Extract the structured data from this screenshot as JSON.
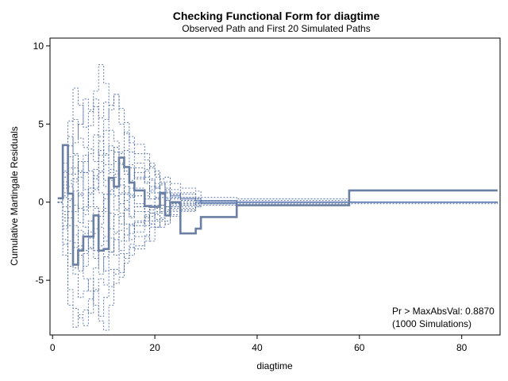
{
  "chart_data": {
    "type": "line",
    "title": "Checking Functional Form for diagtime",
    "subtitle": "Observed Path and First 20 Simulated Paths",
    "xlabel": "diagtime",
    "ylabel": "Cumulative Martingale Residuals",
    "xlim": [
      -0.5,
      87.5
    ],
    "ylim": [
      -8.5,
      10.5
    ],
    "xticks": [
      0,
      20,
      40,
      60,
      80
    ],
    "yticks": [
      -5,
      0,
      5,
      10
    ],
    "x_tick_labels": [
      "0",
      "20",
      "40",
      "60",
      "80"
    ],
    "y_tick_labels": [
      "-5",
      "0",
      "5",
      "10"
    ],
    "grid": false,
    "colors": {
      "observed": "#6b7fa3",
      "simulated": "#3f5f9f",
      "frame": "#000000"
    },
    "observed": {
      "x": [
        1,
        2,
        3,
        4,
        5,
        6,
        7,
        8,
        9,
        10,
        11,
        12,
        13,
        14,
        15,
        16,
        18,
        19,
        20,
        21,
        22,
        23,
        25,
        28,
        29,
        36,
        58,
        87
      ],
      "y": [
        0.25,
        3.65,
        0.55,
        -4.0,
        -3.1,
        -2.2,
        -2.2,
        -0.85,
        -3.1,
        -3.0,
        1.55,
        1.0,
        2.85,
        2.25,
        1.25,
        0.75,
        -0.25,
        -0.3,
        -0.3,
        0.6,
        -0.85,
        0.0,
        -2.0,
        -1.7,
        -0.95,
        -0.2,
        0.75,
        0.75
      ]
    },
    "simulated_paths": [
      {
        "y": [
          0.0,
          1.1,
          2.2,
          3.8,
          5.0,
          6.6,
          5.9,
          7.1,
          8.8,
          7.6,
          6.2,
          6.9,
          6.0,
          5.1,
          4.2,
          3.7,
          3.1,
          2.3,
          1.8,
          1.5,
          1.6,
          1.2,
          0.9,
          0.7,
          0.3,
          0.2,
          0.0,
          0.0
        ]
      },
      {
        "y": [
          0.0,
          2.0,
          5.2,
          7.3,
          6.2,
          4.8,
          5.8,
          6.6,
          4.2,
          5.3,
          5.9,
          6.9,
          5.0,
          4.4,
          3.8,
          3.1,
          2.7,
          2.2,
          1.6,
          1.3,
          0.8,
          0.5,
          0.2,
          0.1,
          -0.1,
          -0.2,
          -0.1,
          0.0
        ]
      },
      {
        "y": [
          0.0,
          -2.4,
          -5.6,
          -6.8,
          -7.4,
          -7.9,
          -6.2,
          -5.6,
          -7.6,
          -8.2,
          -6.6,
          -5.2,
          -4.8,
          -3.9,
          -3.4,
          -2.8,
          -2.2,
          -2.5,
          -1.6,
          -1.2,
          -1.4,
          -0.9,
          -0.6,
          -0.3,
          -0.2,
          0.1,
          0.0,
          0.0
        ]
      },
      {
        "y": [
          0.0,
          -3.4,
          -6.6,
          -8.0,
          -7.2,
          -6.9,
          -7.1,
          -5.7,
          -4.9,
          -5.3,
          -4.3,
          -4.6,
          -3.3,
          -3.6,
          -2.7,
          -2.2,
          -2.1,
          -1.4,
          -1.6,
          -1.0,
          -0.7,
          -0.6,
          -0.4,
          -0.2,
          -0.1,
          0.0,
          0.0,
          0.0
        ]
      },
      {
        "y": [
          0.0,
          1.6,
          3.6,
          5.3,
          4.1,
          3.5,
          4.9,
          6.1,
          5.4,
          6.4,
          4.6,
          3.9,
          3.2,
          4.5,
          3.2,
          2.5,
          2.1,
          2.5,
          2.0,
          1.2,
          1.3,
          0.8,
          0.5,
          0.3,
          0.1,
          -0.1,
          0.0,
          0.0
        ]
      },
      {
        "y": [
          0.0,
          -1.5,
          -3.3,
          -4.6,
          -6.1,
          -5.7,
          -4.9,
          -6.6,
          -7.3,
          -6.1,
          -5.4,
          -4.3,
          -4.5,
          -3.3,
          -2.9,
          -3.0,
          -2.5,
          -1.6,
          -1.2,
          -1.6,
          -1.2,
          -0.8,
          -0.5,
          -0.3,
          -0.1,
          0.0,
          0.0,
          0.0
        ]
      },
      {
        "y": [
          0.0,
          0.6,
          1.4,
          2.2,
          1.6,
          2.6,
          3.4,
          2.6,
          3.9,
          3.1,
          2.4,
          3.2,
          2.5,
          1.8,
          2.2,
          1.6,
          1.2,
          1.5,
          0.9,
          1.1,
          0.6,
          0.4,
          0.3,
          0.2,
          0.1,
          0.0,
          0.0,
          0.0
        ]
      },
      {
        "y": [
          0.0,
          -0.6,
          -1.5,
          -2.6,
          -1.8,
          -3.1,
          -2.3,
          -3.6,
          -2.8,
          -2.2,
          -3.2,
          -2.4,
          -1.8,
          -2.5,
          -1.5,
          -1.2,
          -1.5,
          -0.9,
          -0.6,
          -0.7,
          -0.3,
          -0.2,
          -0.1,
          0.0,
          0.1,
          0.0,
          0.0,
          0.0
        ]
      },
      {
        "y": [
          0.0,
          0.9,
          0.2,
          1.3,
          2.6,
          1.9,
          0.6,
          1.5,
          2.6,
          1.4,
          0.8,
          1.8,
          1.1,
          0.6,
          0.9,
          0.4,
          0.6,
          0.2,
          0.3,
          0.5,
          0.1,
          0.3,
          0.2,
          0.1,
          0.0,
          0.0,
          0.0,
          0.0
        ]
      },
      {
        "y": [
          0.0,
          -1.0,
          -0.3,
          -1.5,
          -2.8,
          -2.0,
          -1.2,
          -0.4,
          -1.6,
          -2.5,
          -1.7,
          -0.8,
          -1.4,
          -0.5,
          -1.0,
          -0.6,
          -0.3,
          -0.7,
          -0.4,
          -0.2,
          -0.5,
          -0.3,
          -0.1,
          0.0,
          0.0,
          0.0,
          0.0,
          0.0
        ]
      },
      {
        "y": [
          0.0,
          1.3,
          2.9,
          1.8,
          0.6,
          -0.5,
          0.9,
          2.1,
          3.3,
          2.4,
          3.6,
          2.6,
          1.5,
          0.5,
          1.4,
          2.2,
          1.6,
          0.8,
          1.2,
          0.5,
          0.9,
          0.6,
          0.3,
          0.2,
          0.1,
          0.0,
          0.0,
          0.0
        ]
      },
      {
        "y": [
          0.0,
          -1.7,
          -0.6,
          0.7,
          -0.4,
          -1.6,
          -2.9,
          -1.7,
          -0.6,
          0.5,
          -0.7,
          -1.9,
          -0.9,
          0.1,
          -0.9,
          -0.3,
          -1.0,
          -0.5,
          -0.2,
          -0.6,
          -0.3,
          -0.1,
          -0.3,
          -0.1,
          0.0,
          0.0,
          0.0,
          0.0
        ]
      },
      {
        "y": [
          0.0,
          0.3,
          -1.0,
          -2.1,
          -3.4,
          -4.1,
          -3.0,
          -2.0,
          -0.9,
          0.2,
          1.4,
          0.4,
          -0.7,
          -1.7,
          -2.4,
          -1.5,
          -0.9,
          -1.4,
          -0.8,
          -1.1,
          -0.6,
          -0.3,
          -0.5,
          -0.2,
          -0.1,
          0.0,
          0.0,
          0.0
        ]
      },
      {
        "y": [
          0.0,
          2.5,
          1.0,
          -0.6,
          0.5,
          1.9,
          3.1,
          4.3,
          3.0,
          4.6,
          3.3,
          2.0,
          3.1,
          2.0,
          1.3,
          1.9,
          1.3,
          0.7,
          1.0,
          0.6,
          0.3,
          0.5,
          0.2,
          0.1,
          0.0,
          0.0,
          0.0,
          0.0
        ]
      },
      {
        "y": [
          0.0,
          -0.3,
          1.8,
          3.0,
          2.0,
          0.8,
          -0.3,
          0.8,
          1.9,
          3.0,
          1.9,
          0.9,
          -0.1,
          1.0,
          0.3,
          0.9,
          0.4,
          1.0,
          0.6,
          0.3,
          0.6,
          0.3,
          0.1,
          0.0,
          0.0,
          0.0,
          0.0,
          0.0
        ]
      },
      {
        "y": [
          0.0,
          -2.7,
          -4.1,
          -2.9,
          -4.4,
          -3.3,
          -1.9,
          -3.1,
          -4.6,
          -3.5,
          -2.3,
          -3.4,
          -2.5,
          -1.4,
          -2.0,
          -1.3,
          -0.8,
          -1.2,
          -0.7,
          -0.4,
          -0.8,
          -0.5,
          -0.2,
          -0.1,
          0.0,
          0.0,
          0.0,
          0.0
        ]
      },
      {
        "y": [
          0.0,
          1.9,
          4.2,
          3.1,
          1.9,
          3.0,
          2.0,
          0.9,
          2.0,
          1.0,
          2.1,
          3.5,
          2.4,
          3.3,
          2.4,
          1.5,
          2.0,
          1.4,
          0.9,
          1.2,
          0.7,
          0.4,
          0.6,
          0.3,
          0.1,
          0.0,
          0.0,
          0.0
        ]
      },
      {
        "y": [
          0.0,
          -0.8,
          -2.5,
          -4.2,
          -3.0,
          -4.9,
          -5.7,
          -4.2,
          -3.1,
          -4.4,
          -3.2,
          -2.0,
          -3.1,
          -2.1,
          -1.4,
          -1.9,
          -1.2,
          -0.7,
          -1.1,
          -0.6,
          -0.3,
          -0.4,
          -0.2,
          -0.1,
          0.0,
          0.0,
          0.0,
          0.0
        ]
      },
      {
        "y": [
          0.0,
          0.4,
          1.2,
          -0.2,
          -1.3,
          -0.3,
          0.9,
          -0.3,
          -1.4,
          -0.4,
          0.7,
          -0.5,
          0.6,
          -0.4,
          0.5,
          -0.1,
          -0.6,
          -0.2,
          0.3,
          -0.2,
          0.2,
          -0.1,
          0.1,
          0.0,
          0.0,
          0.0,
          0.0,
          0.0
        ]
      },
      {
        "y": [
          0.0,
          -1.2,
          0.1,
          1.5,
          0.4,
          -0.8,
          0.5,
          1.7,
          0.6,
          -0.6,
          0.5,
          1.6,
          0.5,
          -0.5,
          0.4,
          -0.3,
          0.2,
          0.6,
          0.2,
          -0.2,
          0.1,
          0.2,
          0.0,
          0.0,
          0.0,
          0.0,
          0.0,
          0.0
        ]
      }
    ],
    "annotation": {
      "line1": "Pr > MaxAbsVal: 0.8870",
      "line2": "(1000 Simulations)"
    }
  }
}
